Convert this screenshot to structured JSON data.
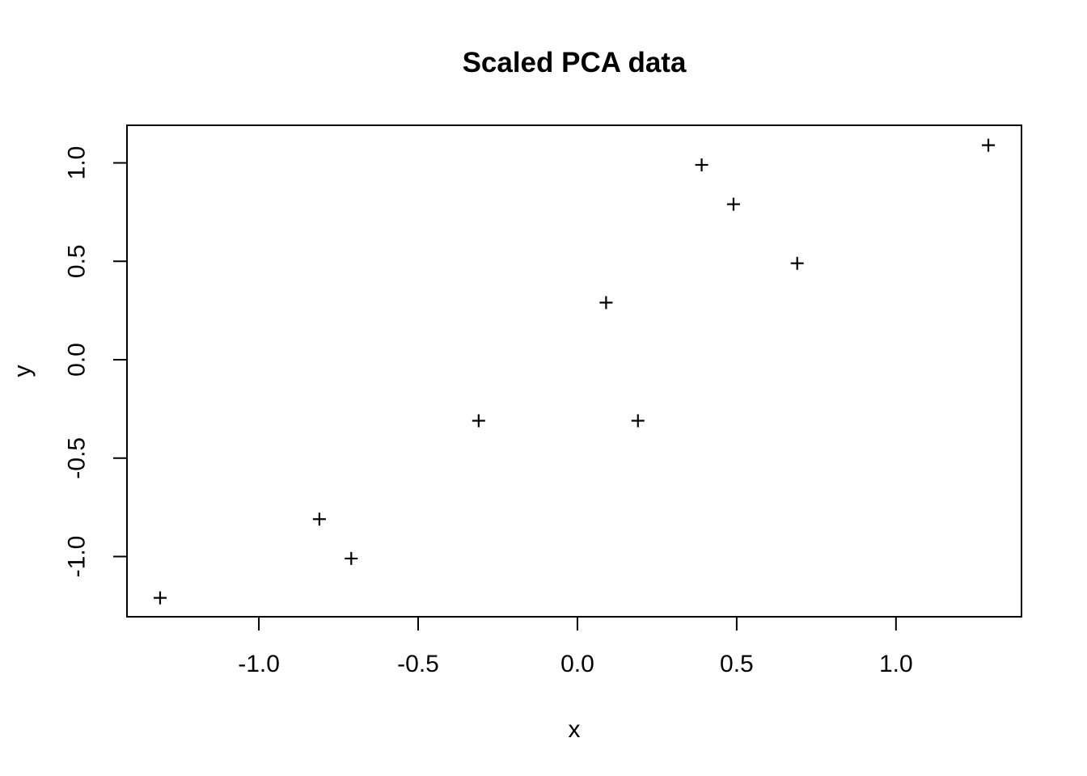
{
  "figure": {
    "background": "#FFFFFF",
    "foreground": "#000000"
  },
  "chart_data": {
    "type": "scatter",
    "title": "Scaled PCA data",
    "xlabel": "x",
    "ylabel": "y",
    "marker": "plus",
    "marker_color": "#000000",
    "grid": false,
    "xlim": [
      -1.414,
      1.394
    ],
    "ylim": [
      -1.306,
      1.191
    ],
    "x_ticks": [
      {
        "value": -1.0,
        "label": "-1.0"
      },
      {
        "value": -0.5,
        "label": "-0.5"
      },
      {
        "value": 0.0,
        "label": "0.0"
      },
      {
        "value": 0.5,
        "label": "0.5"
      },
      {
        "value": 1.0,
        "label": "1.0"
      }
    ],
    "y_ticks": [
      {
        "value": -1.0,
        "label": "-1.0"
      },
      {
        "value": -0.5,
        "label": "-0.5"
      },
      {
        "value": 0.0,
        "label": "0.0"
      },
      {
        "value": 0.5,
        "label": "0.5"
      },
      {
        "value": 1.0,
        "label": "1.0"
      }
    ],
    "points": [
      {
        "x": -1.31,
        "y": -1.21
      },
      {
        "x": -0.81,
        "y": -0.81
      },
      {
        "x": -0.71,
        "y": -1.01
      },
      {
        "x": -0.31,
        "y": -0.31
      },
      {
        "x": 0.09,
        "y": 0.29
      },
      {
        "x": 0.19,
        "y": -0.31
      },
      {
        "x": 0.39,
        "y": 0.99
      },
      {
        "x": 0.49,
        "y": 0.79
      },
      {
        "x": 0.69,
        "y": 0.49
      },
      {
        "x": 1.29,
        "y": 1.09
      }
    ]
  }
}
